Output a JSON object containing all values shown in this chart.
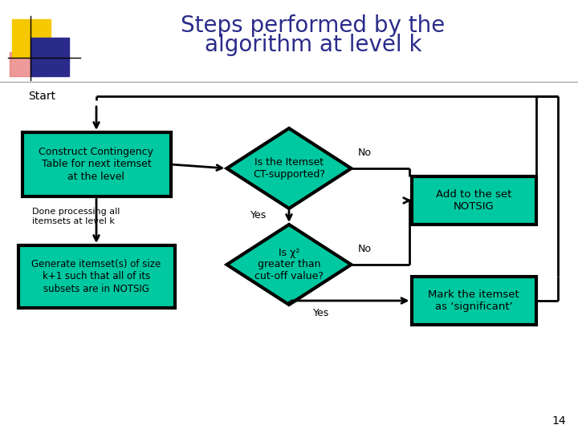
{
  "title_line1": "Steps performed by the",
  "title_line2": "algorithm at level k",
  "title_color": "#2b2b8b",
  "title_fontsize": 20,
  "background_color": "#ffffff",
  "teal_color": "#00c8a0",
  "box_border_color": "#000000",
  "text_color": "#000000",
  "page_number": "14",
  "nodes": {
    "start_label": "Start",
    "box1": "Construct Contingency\nTable for next itemset\nat the level",
    "diamond1": "Is the Itemset\nCT-supported?",
    "box2": "Add to the set\nNOTSIG",
    "box3": "Generate itemset(s) of size\nk+1 such that all of its\nsubsets are in NOTSIG",
    "diamond2": "Is χ²\ngreater than\ncut-off value?",
    "box4": "Mark the itemset\nas ‘significant’",
    "done_label": "Done processing all\nitemsets at level k"
  },
  "logo_yellow": "#f5c800",
  "logo_blue": "#2b2b8b",
  "logo_red": "#e87070",
  "arrow_color": "#000000"
}
